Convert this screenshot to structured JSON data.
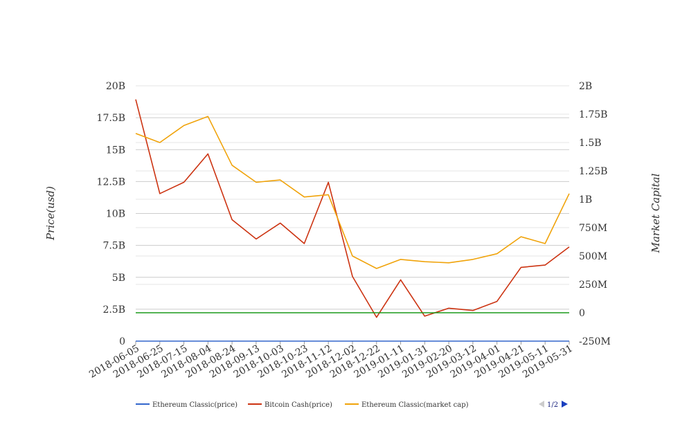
{
  "chart_data": {
    "type": "line",
    "x": [
      "2018-06-05",
      "2018-06-25",
      "2018-07-15",
      "2018-08-04",
      "2018-08-24",
      "2018-09-13",
      "2018-10-03",
      "2018-10-23",
      "2018-11-12",
      "2018-12-02",
      "2018-12-22",
      "2019-01-11",
      "2019-01-31",
      "2019-02-20",
      "2019-03-12",
      "2019-04-01",
      "2019-04-21",
      "2019-05-11",
      "2019-05-31"
    ],
    "y_left_label": "Price(usd)",
    "y_right_label": "Market Capital",
    "y_left_ticks": [
      "0",
      "2.5B",
      "5B",
      "7.5B",
      "10B",
      "12.5B",
      "15B",
      "17.5B",
      "20B"
    ],
    "y_left_range": [
      0,
      20000000000
    ],
    "y_right_ticks": [
      "-250M",
      "0",
      "250M",
      "500M",
      "750M",
      "1B",
      "1.25B",
      "1.5B",
      "1.75B",
      "2B"
    ],
    "y_right_range": [
      -250000000,
      2000000000
    ],
    "grid": true,
    "legend_position": "bottom",
    "series": [
      {
        "name": "Ethereum Classic(price)",
        "axis": "left",
        "color": "#3366cc",
        "values": [
          10,
          10,
          10,
          10,
          10,
          10,
          10,
          10,
          10,
          10,
          10,
          10,
          10,
          10,
          10,
          10,
          10,
          10,
          10
        ]
      },
      {
        "name": "Bitcoin Cash(price)",
        "axis": "right",
        "color": "#cc3311",
        "values": [
          1880000000,
          1050000000,
          1150000000,
          1400000000,
          820000000,
          650000000,
          790000000,
          610000000,
          1150000000,
          320000000,
          -40000000,
          290000000,
          -30000000,
          40000000,
          20000000,
          100000000,
          400000000,
          420000000,
          580000000
        ]
      },
      {
        "name": "Ethereum Classic(market cap)",
        "axis": "right",
        "color": "#f0a30a",
        "values": [
          1580000000,
          1500000000,
          1650000000,
          1730000000,
          1300000000,
          1150000000,
          1170000000,
          1020000000,
          1040000000,
          500000000,
          390000000,
          470000000,
          450000000,
          440000000,
          470000000,
          520000000,
          670000000,
          610000000,
          1050000000
        ]
      },
      {
        "name": "",
        "axis": "right",
        "color": "#1a9a1a",
        "values": [
          0,
          0,
          0,
          0,
          0,
          0,
          0,
          0,
          0,
          0,
          0,
          0,
          0,
          0,
          0,
          0,
          0,
          0,
          0
        ]
      }
    ]
  },
  "legend": {
    "items": [
      {
        "label": "Ethereum Classic(price)",
        "color": "#3366cc"
      },
      {
        "label": "Bitcoin Cash(price)",
        "color": "#cc3311"
      },
      {
        "label": "Ethereum Classic(market cap)",
        "color": "#f0a30a"
      }
    ],
    "page": "1/2",
    "prev_icon": "triangle-left-icon",
    "next_icon": "triangle-right-icon"
  }
}
